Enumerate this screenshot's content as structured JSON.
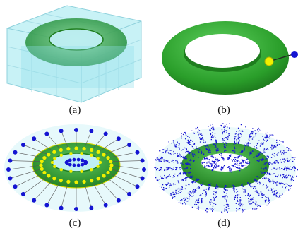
{
  "figure": {
    "panels": [
      {
        "label": "(a)",
        "content": "torus-in-voxel-grid"
      },
      {
        "label": "(b)",
        "content": "torus-with-single-probe"
      },
      {
        "label": "(c)",
        "content": "torus-with-probe-ring"
      },
      {
        "label": "(d)",
        "content": "torus-with-point-cloud"
      }
    ]
  },
  "colors": {
    "torus_green": "#2fa52f",
    "torus_dark": "#1e7d1e",
    "voxel_cyan": "#8fe0ea",
    "probe_blue": "#1414d2",
    "probe_yellow": "#f0f000",
    "line_black": "#222222"
  }
}
